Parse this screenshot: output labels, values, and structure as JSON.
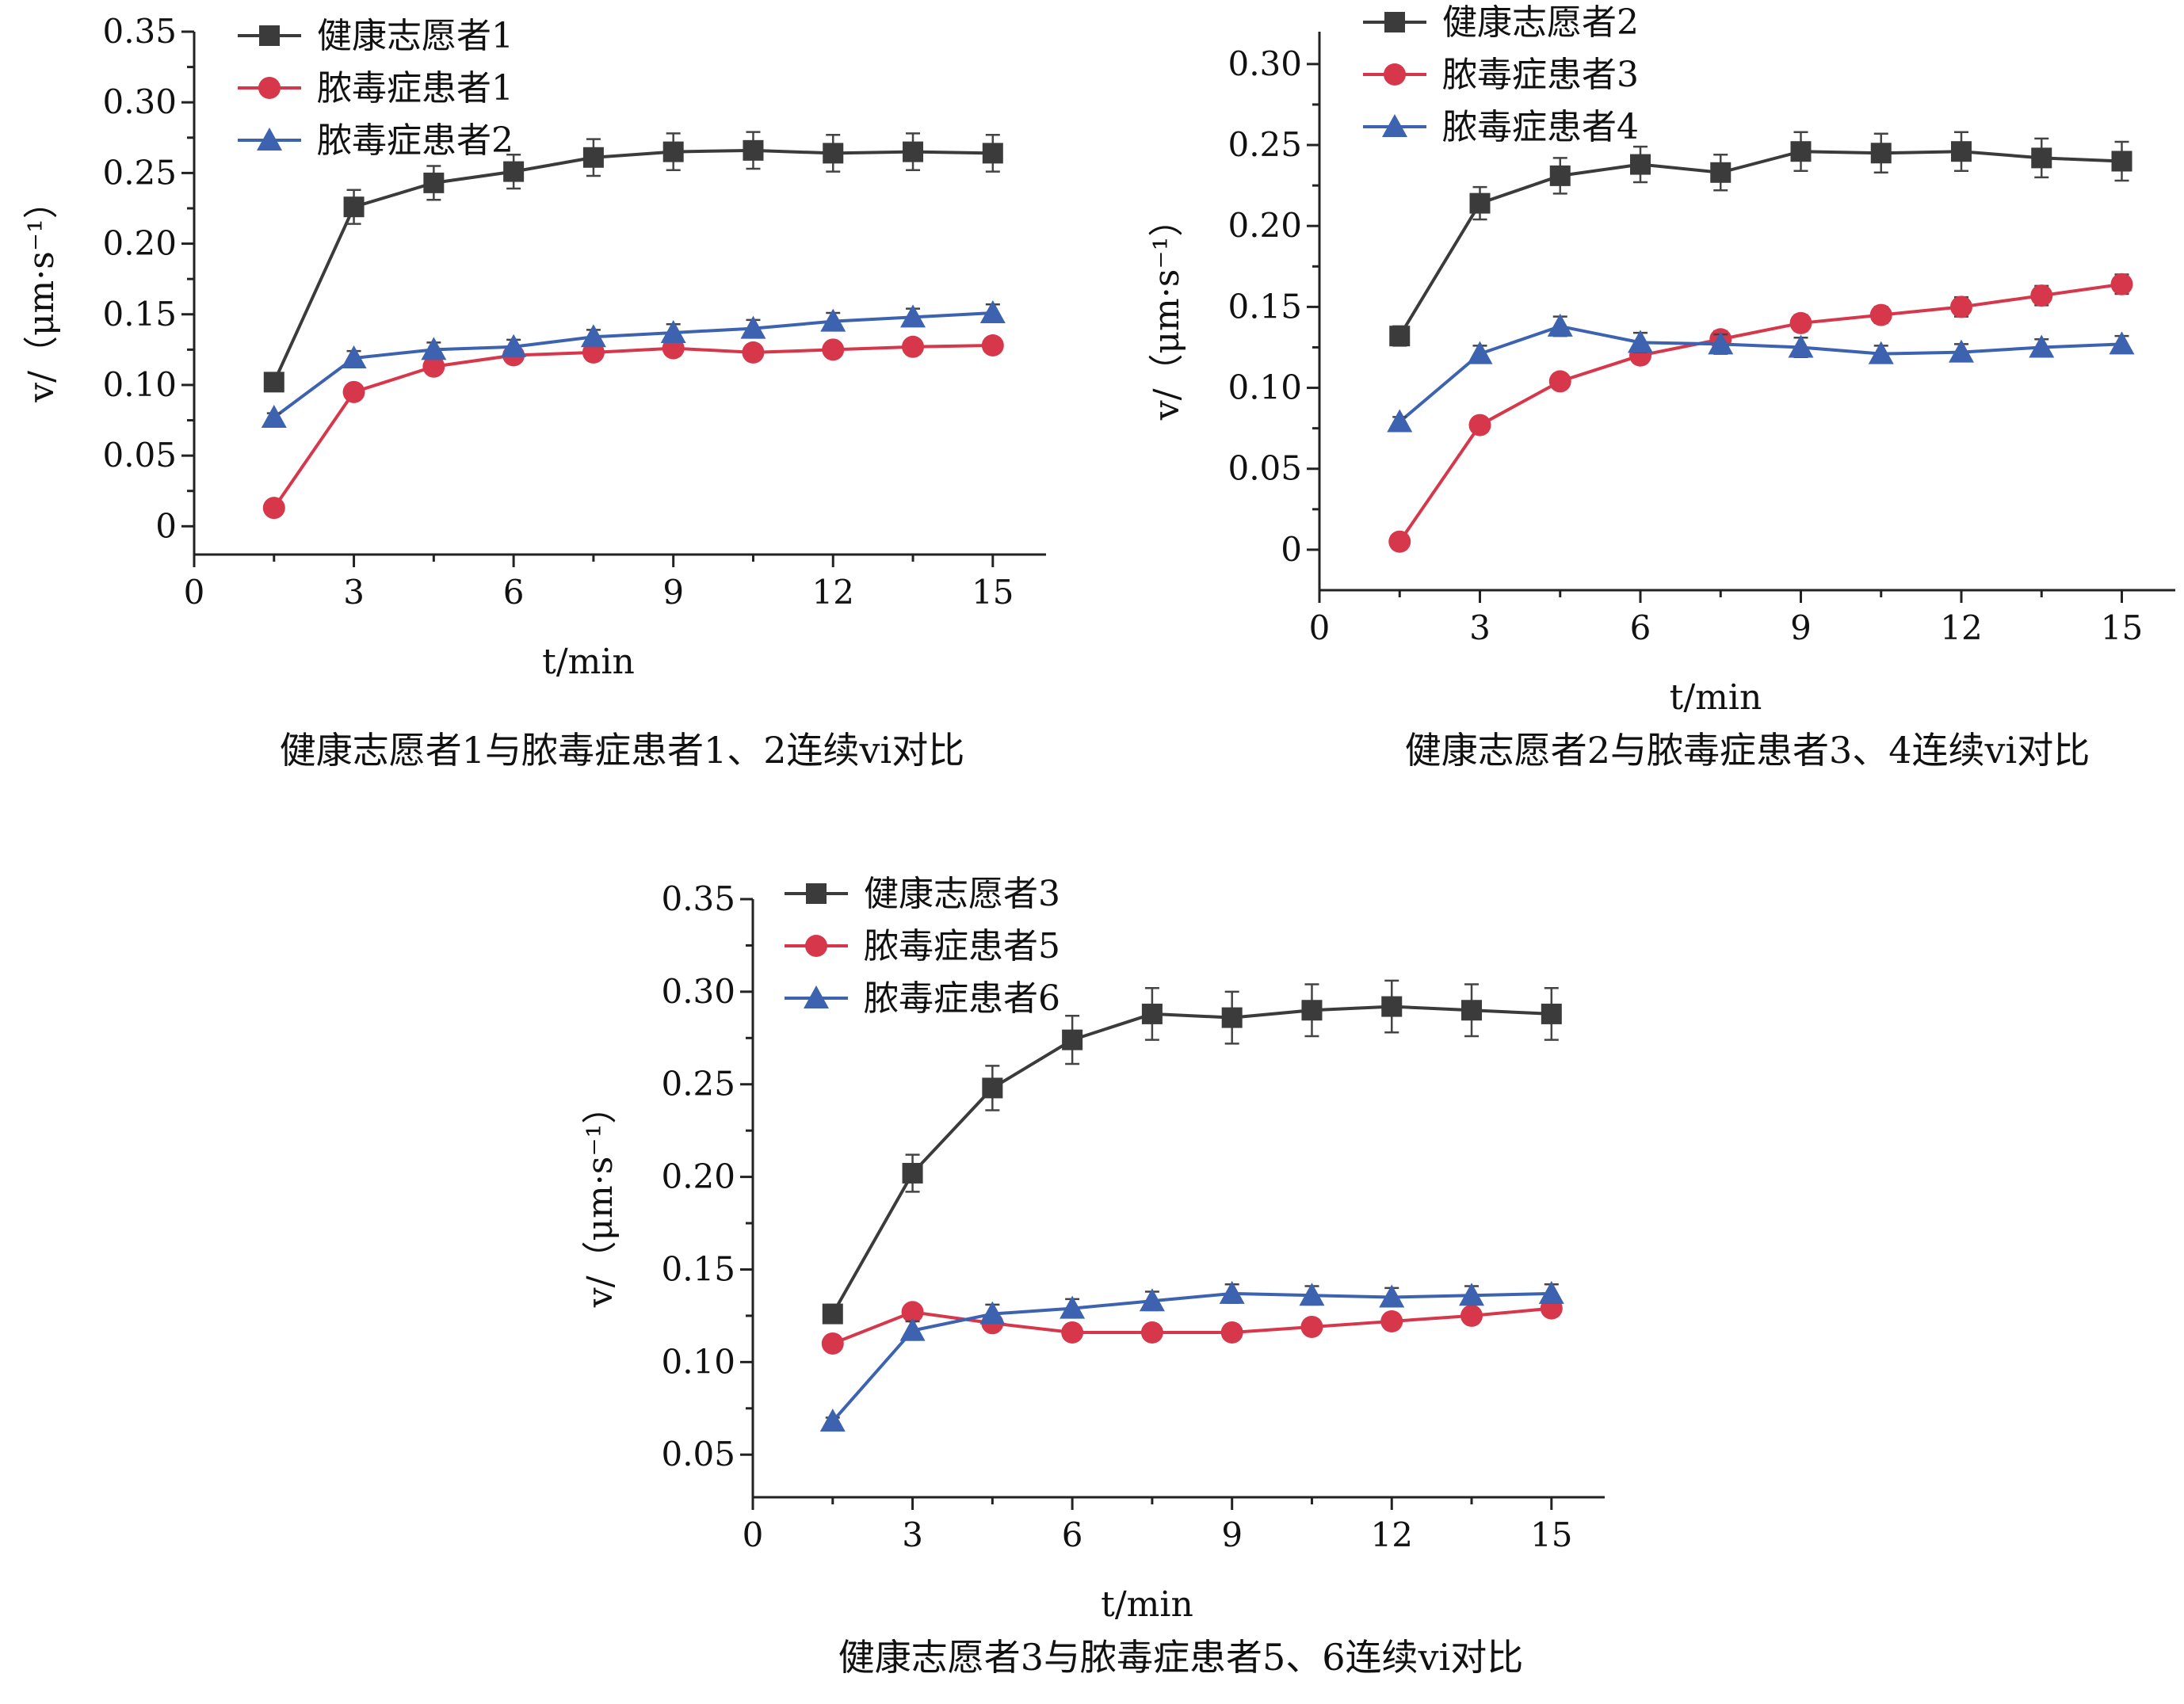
{
  "chart_data": [
    {
      "type": "line",
      "caption": "健康志愿者1与脓毒症患者1、2连续vi对比",
      "xlabel": "t/min",
      "ylabel": "v/（μm·s⁻¹）",
      "xlim": [
        0,
        16
      ],
      "ylim": [
        -0.02,
        0.35
      ],
      "xticks": [
        0,
        3,
        6,
        9,
        12,
        15
      ],
      "xtick_labels": [
        "0",
        "3",
        "6",
        "9",
        "12",
        "15"
      ],
      "yticks": [
        0,
        0.05,
        0.1,
        0.15,
        0.2,
        0.25,
        0.3,
        0.35
      ],
      "ytick_labels": [
        "0",
        "0.05",
        "0.10",
        "0.15",
        "0.20",
        "0.25",
        "0.30",
        "0.35"
      ],
      "legend_position": "top-left",
      "x": [
        1.5,
        3,
        4.5,
        6,
        7.5,
        9,
        10.5,
        12,
        13.5,
        15
      ],
      "series": [
        {
          "name": "健康志愿者1",
          "marker": "square",
          "color": "#3b3b3b",
          "values": [
            0.102,
            0.226,
            0.243,
            0.251,
            0.261,
            0.265,
            0.266,
            0.264,
            0.265,
            0.264
          ],
          "errors": [
            0.003,
            0.012,
            0.012,
            0.012,
            0.013,
            0.013,
            0.013,
            0.013,
            0.013,
            0.013
          ]
        },
        {
          "name": "脓毒症患者1",
          "marker": "circle",
          "color": "#d7374a",
          "values": [
            0.013,
            0.095,
            0.113,
            0.121,
            0.123,
            0.126,
            0.123,
            0.125,
            0.127,
            0.128
          ],
          "errors": [
            0.003,
            0.004,
            0.004,
            0.004,
            0.004,
            0.004,
            0.004,
            0.004,
            0.004,
            0.004
          ]
        },
        {
          "name": "脓毒症患者2",
          "marker": "triangle",
          "color": "#3c62b0",
          "values": [
            0.077,
            0.119,
            0.125,
            0.127,
            0.134,
            0.137,
            0.14,
            0.145,
            0.148,
            0.151
          ],
          "errors": [
            0.003,
            0.005,
            0.005,
            0.005,
            0.005,
            0.006,
            0.006,
            0.006,
            0.006,
            0.006
          ]
        }
      ]
    },
    {
      "type": "line",
      "caption": "健康志愿者2与脓毒症患者3、4连续vi对比",
      "xlabel": "t/min",
      "ylabel": "v/（μm·s⁻¹）",
      "xlim": [
        0,
        16
      ],
      "ylim": [
        -0.025,
        0.32
      ],
      "xticks": [
        0,
        3,
        6,
        9,
        12,
        15
      ],
      "xtick_labels": [
        "0",
        "3",
        "6",
        "9",
        "12",
        "15"
      ],
      "yticks": [
        0,
        0.05,
        0.1,
        0.15,
        0.2,
        0.25,
        0.3
      ],
      "ytick_labels": [
        "0",
        "0.05",
        "0.10",
        "0.15",
        "0.20",
        "0.25",
        "0.30"
      ],
      "legend_position": "top-left",
      "x": [
        1.5,
        3,
        4.5,
        6,
        7.5,
        9,
        10.5,
        12,
        13.5,
        15
      ],
      "series": [
        {
          "name": "健康志愿者2",
          "marker": "square",
          "color": "#3b3b3b",
          "values": [
            0.132,
            0.214,
            0.231,
            0.238,
            0.233,
            0.246,
            0.245,
            0.246,
            0.242,
            0.24
          ],
          "errors": [
            0.006,
            0.01,
            0.011,
            0.011,
            0.011,
            0.012,
            0.012,
            0.012,
            0.012,
            0.012
          ]
        },
        {
          "name": "脓毒症患者3",
          "marker": "circle",
          "color": "#d7374a",
          "values": [
            0.005,
            0.077,
            0.104,
            0.12,
            0.13,
            0.14,
            0.145,
            0.15,
            0.157,
            0.164
          ],
          "errors": [
            0.002,
            0.003,
            0.004,
            0.004,
            0.005,
            0.005,
            0.005,
            0.006,
            0.006,
            0.006
          ]
        },
        {
          "name": "脓毒症患者4",
          "marker": "triangle",
          "color": "#3c62b0",
          "values": [
            0.079,
            0.121,
            0.138,
            0.128,
            0.127,
            0.125,
            0.121,
            0.122,
            0.125,
            0.127
          ],
          "errors": [
            0.003,
            0.005,
            0.006,
            0.006,
            0.006,
            0.006,
            0.005,
            0.005,
            0.005,
            0.005
          ]
        }
      ]
    },
    {
      "type": "line",
      "caption": "健康志愿者3与脓毒症患者5、6连续vi对比",
      "xlabel": "t/min",
      "ylabel": "v/（μm·s⁻¹）",
      "xlim": [
        0,
        16
      ],
      "ylim": [
        0.027,
        0.35
      ],
      "xticks": [
        0,
        3,
        6,
        9,
        12,
        15
      ],
      "xtick_labels": [
        "0",
        "3",
        "6",
        "9",
        "12",
        "15"
      ],
      "yticks": [
        0.05,
        0.1,
        0.15,
        0.2,
        0.25,
        0.3,
        0.35
      ],
      "ytick_labels": [
        "0.05",
        "0.10",
        "0.15",
        "0.20",
        "0.25",
        "0.30",
        "0.35"
      ],
      "legend_position": "top-left",
      "x": [
        1.5,
        3,
        4.5,
        6,
        7.5,
        9,
        10.5,
        12,
        13.5,
        15
      ],
      "series": [
        {
          "name": "健康志愿者3",
          "marker": "square",
          "color": "#3b3b3b",
          "values": [
            0.126,
            0.202,
            0.248,
            0.274,
            0.288,
            0.286,
            0.29,
            0.292,
            0.29,
            0.288
          ],
          "errors": [
            0.005,
            0.01,
            0.012,
            0.013,
            0.014,
            0.014,
            0.014,
            0.014,
            0.014,
            0.014
          ]
        },
        {
          "name": "脓毒症患者5",
          "marker": "circle",
          "color": "#d7374a",
          "values": [
            0.11,
            0.127,
            0.121,
            0.116,
            0.116,
            0.116,
            0.119,
            0.122,
            0.125,
            0.129
          ],
          "errors": [
            0.004,
            0.004,
            0.004,
            0.004,
            0.004,
            0.004,
            0.004,
            0.004,
            0.004,
            0.004
          ]
        },
        {
          "name": "脓毒症患者6",
          "marker": "triangle",
          "color": "#3c62b0",
          "values": [
            0.068,
            0.117,
            0.126,
            0.129,
            0.133,
            0.137,
            0.136,
            0.135,
            0.136,
            0.137
          ],
          "errors": [
            0.002,
            0.005,
            0.005,
            0.005,
            0.005,
            0.005,
            0.005,
            0.005,
            0.005,
            0.005
          ]
        }
      ]
    }
  ]
}
